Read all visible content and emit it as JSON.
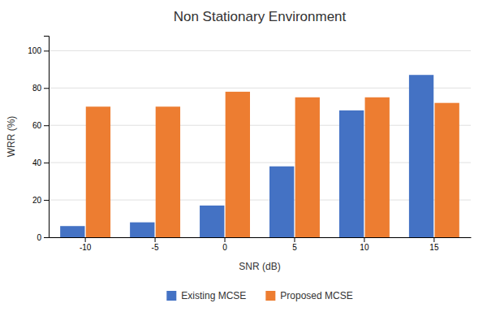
{
  "chart_data": {
    "type": "bar",
    "title": "Non Stationary Environment",
    "xlabel": "SNR (dB)",
    "ylabel": "WRR (%)",
    "categories": [
      "-10",
      "-5",
      "0",
      "5",
      "10",
      "15"
    ],
    "series": [
      {
        "name": "Existing MCSE",
        "color": "#4472C4",
        "values": [
          6,
          8,
          17,
          38,
          68,
          87
        ]
      },
      {
        "name": "Proposed MCSE",
        "color": "#ED7D31",
        "values": [
          70,
          70,
          78,
          75,
          75,
          72
        ]
      }
    ],
    "ylim": [
      0,
      108
    ],
    "yticks": [
      0,
      20,
      40,
      60,
      80,
      100
    ],
    "grid": true,
    "legend": "bottom"
  }
}
